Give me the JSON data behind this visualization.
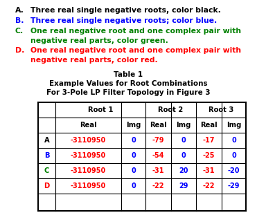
{
  "bg_color": "#ffffff",
  "legend_items": [
    {
      "letter": "A.",
      "letter_color": "black",
      "text": "Three real single negative roots, color black.",
      "text_color": "black",
      "cont": null
    },
    {
      "letter": "B.",
      "letter_color": "blue",
      "text": "Three real single negative roots; color blue.",
      "text_color": "blue",
      "cont": null
    },
    {
      "letter": "C.",
      "letter_color": "#008000",
      "text": "One real negative root and one complex pair with",
      "text_color": "#008000",
      "cont": "negative real parts, color green."
    },
    {
      "letter": "D.",
      "letter_color": "red",
      "text": "One real negative root and one complex pair with",
      "text_color": "red",
      "cont": "negative real parts, color red."
    }
  ],
  "table_title": [
    "Table 1",
    "Example Values for Root Combinations",
    "For 3-Pole LP Filter Topology in Figure 3"
  ],
  "col_headers_top": [
    "Root 1",
    "Root 2",
    "Root 3"
  ],
  "col_headers_sub": [
    "Real",
    "Img",
    "Real",
    "Img",
    "Real",
    "Img"
  ],
  "row_labels": [
    "A",
    "B",
    "C",
    "D"
  ],
  "row_label_colors": [
    "black",
    "blue",
    "#008000",
    "red"
  ],
  "table_data": [
    [
      "-3110950",
      "0",
      "-79",
      "0",
      "-17",
      "0"
    ],
    [
      "-3110950",
      "0",
      "-54",
      "0",
      "-25",
      "0"
    ],
    [
      "-3110950",
      "0",
      "-31",
      "20",
      "-31",
      "-20"
    ],
    [
      "-3110950",
      "0",
      "-22",
      "29",
      "-22",
      "-29"
    ]
  ],
  "data_colors": [
    [
      "red",
      "blue",
      "red",
      "blue",
      "red",
      "blue"
    ],
    [
      "red",
      "blue",
      "red",
      "blue",
      "red",
      "blue"
    ],
    [
      "red",
      "blue",
      "red",
      "blue",
      "red",
      "blue"
    ],
    [
      "red",
      "blue",
      "red",
      "blue",
      "red",
      "blue"
    ]
  ],
  "font_size_legend": 7.8,
  "font_size_title": 7.5,
  "font_size_header": 7.2,
  "font_size_data": 7.0
}
